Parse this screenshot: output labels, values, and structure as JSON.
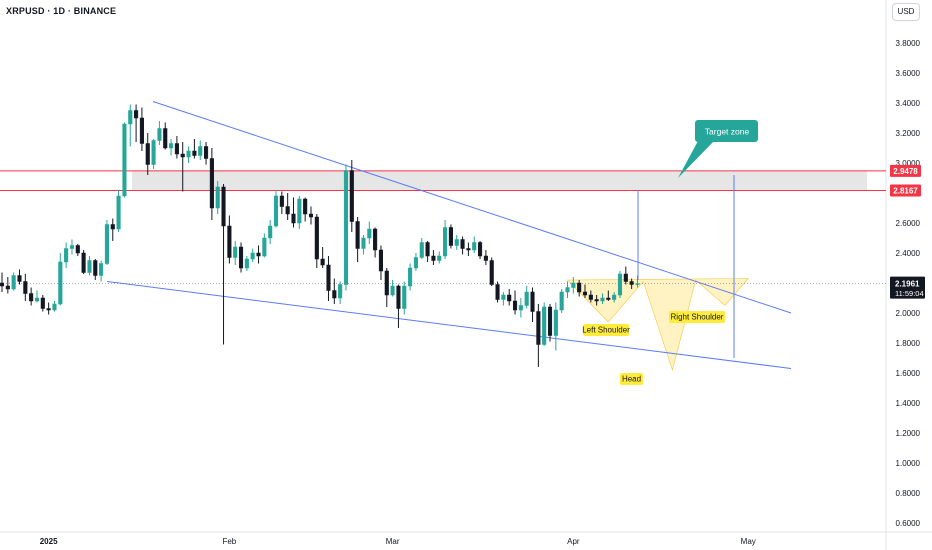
{
  "header": {
    "symbol_title": "XRPUSD · 1D · BINANCE",
    "currency": "USD"
  },
  "colors": {
    "up": "#26a69a",
    "down": "#131722",
    "trendline": "#5b7cf5",
    "resistance": "#f23645",
    "zone_fill": "#e6e6e6",
    "pattern_fill": "#fff3c4",
    "label_yellow": "#ffeb3b",
    "callout": "#26a69a",
    "price_tag": "#131722"
  },
  "chart_data": {
    "type": "candlestick",
    "y_axis": {
      "ticks": [
        "3.8000",
        "3.6000",
        "3.4000",
        "3.2000",
        "3.0000",
        "2.8000",
        "2.6000",
        "2.4000",
        "2.2000",
        "2.0000",
        "1.8000",
        "1.6000",
        "1.4000",
        "1.2000",
        "1.0000",
        "0.8000",
        "0.6000"
      ],
      "range": [
        0.55,
        4.0
      ]
    },
    "x_axis": {
      "ticks": [
        {
          "label": "2025",
          "date": "2025-01-01"
        },
        {
          "label": "Feb",
          "date": "2025-02-01"
        },
        {
          "label": "Mar",
          "date": "2025-03-01"
        },
        {
          "label": "Apr",
          "date": "2025-04-01"
        },
        {
          "label": "May",
          "date": "2025-05-01"
        }
      ]
    },
    "start_date": "2024-12-24",
    "candles": [
      [
        2.2,
        2.27,
        2.14,
        2.18
      ],
      [
        2.18,
        2.24,
        2.13,
        2.16
      ],
      [
        2.16,
        2.27,
        2.15,
        2.25
      ],
      [
        2.25,
        2.29,
        2.19,
        2.21
      ],
      [
        2.21,
        2.26,
        2.08,
        2.13
      ],
      [
        2.13,
        2.17,
        2.05,
        2.08
      ],
      [
        2.08,
        2.15,
        2.07,
        2.1
      ],
      [
        2.1,
        2.12,
        2.01,
        2.03
      ],
      [
        2.03,
        2.07,
        1.99,
        2.02
      ],
      [
        2.02,
        2.08,
        2.01,
        2.06
      ],
      [
        2.06,
        2.4,
        2.05,
        2.34
      ],
      [
        2.34,
        2.47,
        2.3,
        2.43
      ],
      [
        2.43,
        2.49,
        2.39,
        2.45
      ],
      [
        2.45,
        2.46,
        2.38,
        2.4
      ],
      [
        2.4,
        2.42,
        2.26,
        2.27
      ],
      [
        2.27,
        2.38,
        2.25,
        2.35
      ],
      [
        2.35,
        2.36,
        2.22,
        2.25
      ],
      [
        2.25,
        2.35,
        2.21,
        2.33
      ],
      [
        2.33,
        2.62,
        2.32,
        2.59
      ],
      [
        2.59,
        2.63,
        2.48,
        2.56
      ],
      [
        2.56,
        2.82,
        2.54,
        2.78
      ],
      [
        2.78,
        3.27,
        2.77,
        3.26
      ],
      [
        3.26,
        3.39,
        3.11,
        3.35
      ],
      [
        3.35,
        3.39,
        3.14,
        3.3
      ],
      [
        3.3,
        3.37,
        3.08,
        3.13
      ],
      [
        3.13,
        3.2,
        2.92,
        2.99
      ],
      [
        2.99,
        3.16,
        2.96,
        3.15
      ],
      [
        3.15,
        3.28,
        3.12,
        3.23
      ],
      [
        3.23,
        3.27,
        3.09,
        3.1
      ],
      [
        3.1,
        3.16,
        3.05,
        3.13
      ],
      [
        3.13,
        3.18,
        3.03,
        3.06
      ],
      [
        3.06,
        3.14,
        2.81,
        3.04
      ],
      [
        3.04,
        3.11,
        3.0,
        3.08
      ],
      [
        3.08,
        3.16,
        3.03,
        3.05
      ],
      [
        3.05,
        3.15,
        3.02,
        3.11
      ],
      [
        3.11,
        3.14,
        2.99,
        3.03
      ],
      [
        3.03,
        3.1,
        2.62,
        2.7
      ],
      [
        2.7,
        2.88,
        2.66,
        2.84
      ],
      [
        2.84,
        2.86,
        1.79,
        2.58
      ],
      [
        2.58,
        2.65,
        2.33,
        2.37
      ],
      [
        2.37,
        2.48,
        2.32,
        2.44
      ],
      [
        2.44,
        2.47,
        2.27,
        2.3
      ],
      [
        2.3,
        2.38,
        2.28,
        2.36
      ],
      [
        2.36,
        2.43,
        2.34,
        2.4
      ],
      [
        2.4,
        2.45,
        2.33,
        2.38
      ],
      [
        2.38,
        2.53,
        2.37,
        2.5
      ],
      [
        2.5,
        2.62,
        2.46,
        2.58
      ],
      [
        2.58,
        2.82,
        2.57,
        2.78
      ],
      [
        2.78,
        2.81,
        2.66,
        2.71
      ],
      [
        2.71,
        2.8,
        2.62,
        2.66
      ],
      [
        2.66,
        2.77,
        2.57,
        2.6
      ],
      [
        2.6,
        2.78,
        2.56,
        2.76
      ],
      [
        2.76,
        2.77,
        2.61,
        2.66
      ],
      [
        2.66,
        2.71,
        2.59,
        2.64
      ],
      [
        2.64,
        2.66,
        2.3,
        2.36
      ],
      [
        2.36,
        2.44,
        2.3,
        2.32
      ],
      [
        2.32,
        2.38,
        2.08,
        2.15
      ],
      [
        2.15,
        2.23,
        2.06,
        2.1
      ],
      [
        2.1,
        2.21,
        2.06,
        2.19
      ],
      [
        2.19,
        2.99,
        2.15,
        2.95
      ],
      [
        2.95,
        3.02,
        2.54,
        2.61
      ],
      [
        2.61,
        2.64,
        2.34,
        2.43
      ],
      [
        2.43,
        2.52,
        2.39,
        2.5
      ],
      [
        2.5,
        2.61,
        2.46,
        2.56
      ],
      [
        2.56,
        2.57,
        2.37,
        2.42
      ],
      [
        2.42,
        2.45,
        2.22,
        2.28
      ],
      [
        2.28,
        2.3,
        2.04,
        2.12
      ],
      [
        2.12,
        2.22,
        2.11,
        2.18
      ],
      [
        2.18,
        2.19,
        1.9,
        2.03
      ],
      [
        2.03,
        2.21,
        1.99,
        2.18
      ],
      [
        2.18,
        2.33,
        2.15,
        2.3
      ],
      [
        2.3,
        2.4,
        2.28,
        2.37
      ],
      [
        2.37,
        2.5,
        2.36,
        2.47
      ],
      [
        2.47,
        2.48,
        2.34,
        2.38
      ],
      [
        2.38,
        2.42,
        2.32,
        2.35
      ],
      [
        2.35,
        2.41,
        2.33,
        2.38
      ],
      [
        2.38,
        2.62,
        2.36,
        2.57
      ],
      [
        2.57,
        2.59,
        2.43,
        2.45
      ],
      [
        2.45,
        2.52,
        2.42,
        2.49
      ],
      [
        2.49,
        2.51,
        2.39,
        2.43
      ],
      [
        2.43,
        2.47,
        2.38,
        2.42
      ],
      [
        2.42,
        2.51,
        2.4,
        2.47
      ],
      [
        2.47,
        2.48,
        2.36,
        2.38
      ],
      [
        2.38,
        2.42,
        2.32,
        2.35
      ],
      [
        2.35,
        2.37,
        2.18,
        2.19
      ],
      [
        2.19,
        2.21,
        2.07,
        2.09
      ],
      [
        2.09,
        2.14,
        2.05,
        2.12
      ],
      [
        2.12,
        2.16,
        2.05,
        2.08
      ],
      [
        2.08,
        2.15,
        1.99,
        2.02
      ],
      [
        2.02,
        2.1,
        1.97,
        2.05
      ],
      [
        2.05,
        2.18,
        2.03,
        2.14
      ],
      [
        2.14,
        2.17,
        1.94,
        2.01
      ],
      [
        2.01,
        2.06,
        1.64,
        1.79
      ],
      [
        1.79,
        2.07,
        1.78,
        2.04
      ],
      [
        2.04,
        2.06,
        1.81,
        1.85
      ],
      [
        1.85,
        2.07,
        1.75,
        2.02
      ],
      [
        2.02,
        2.16,
        2.0,
        2.14
      ],
      [
        2.14,
        2.21,
        2.1,
        2.17
      ],
      [
        2.17,
        2.24,
        2.13,
        2.2
      ],
      [
        2.2,
        2.22,
        2.11,
        2.14
      ],
      [
        2.14,
        2.19,
        2.1,
        2.12
      ],
      [
        2.12,
        2.15,
        2.07,
        2.09
      ],
      [
        2.09,
        2.12,
        2.05,
        2.08
      ],
      [
        2.08,
        2.13,
        2.06,
        2.1
      ],
      [
        2.1,
        2.15,
        2.08,
        2.09
      ],
      [
        2.09,
        2.14,
        2.07,
        2.12
      ],
      [
        2.12,
        2.28,
        2.1,
        2.26
      ],
      [
        2.26,
        2.31,
        2.19,
        2.21
      ],
      [
        2.21,
        2.23,
        2.16,
        2.19
      ],
      [
        2.19,
        2.25,
        2.17,
        2.1961
      ]
    ],
    "last_price": "2.1961",
    "countdown": "11:59:04",
    "levels": [
      {
        "label": "2.9478",
        "value": 2.9478
      },
      {
        "label": "2.8167",
        "value": 2.8167
      }
    ],
    "annotations": {
      "target_zone": "Target zone",
      "left_shoulder": "Left Shoulder",
      "head": "Head",
      "right_shoulder": "Right Shoulder"
    },
    "grid": false
  }
}
